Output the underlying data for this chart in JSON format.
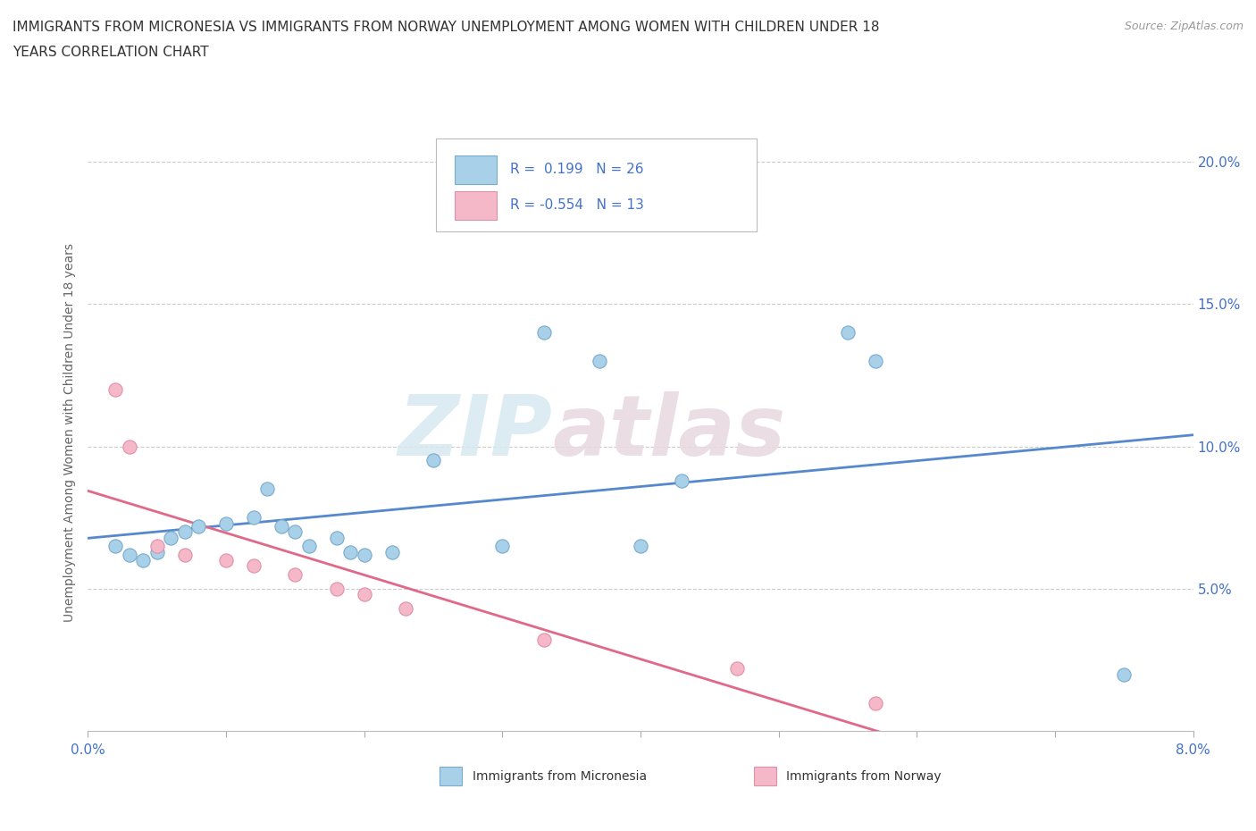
{
  "title_line1": "IMMIGRANTS FROM MICRONESIA VS IMMIGRANTS FROM NORWAY UNEMPLOYMENT AMONG WOMEN WITH CHILDREN UNDER 18",
  "title_line2": "YEARS CORRELATION CHART",
  "source": "Source: ZipAtlas.com",
  "ylabel": "Unemployment Among Women with Children Under 18 years",
  "xlim": [
    0.0,
    0.08
  ],
  "ylim": [
    0.0,
    0.21
  ],
  "x_ticks": [
    0.0,
    0.01,
    0.02,
    0.03,
    0.04,
    0.05,
    0.06,
    0.07,
    0.08
  ],
  "x_tick_labels": [
    "0.0%",
    "",
    "",
    "",
    "",
    "",
    "",
    "",
    "8.0%"
  ],
  "y_ticks": [
    0.0,
    0.05,
    0.1,
    0.15,
    0.2
  ],
  "y_tick_labels": [
    "",
    "5.0%",
    "10.0%",
    "15.0%",
    "20.0%"
  ],
  "micronesia_x": [
    0.002,
    0.003,
    0.004,
    0.005,
    0.006,
    0.007,
    0.008,
    0.01,
    0.012,
    0.013,
    0.014,
    0.015,
    0.016,
    0.018,
    0.019,
    0.02,
    0.022,
    0.025,
    0.03,
    0.033,
    0.037,
    0.04,
    0.043,
    0.055,
    0.057,
    0.075
  ],
  "micronesia_y": [
    0.065,
    0.062,
    0.06,
    0.063,
    0.068,
    0.07,
    0.072,
    0.073,
    0.075,
    0.085,
    0.072,
    0.07,
    0.065,
    0.068,
    0.063,
    0.062,
    0.063,
    0.095,
    0.065,
    0.14,
    0.13,
    0.065,
    0.088,
    0.14,
    0.13,
    0.02
  ],
  "norway_x": [
    0.002,
    0.003,
    0.005,
    0.007,
    0.01,
    0.012,
    0.015,
    0.018,
    0.02,
    0.023,
    0.033,
    0.047,
    0.057
  ],
  "norway_y": [
    0.12,
    0.1,
    0.065,
    0.062,
    0.06,
    0.058,
    0.055,
    0.05,
    0.048,
    0.043,
    0.032,
    0.022,
    0.01
  ],
  "R_micronesia": 0.199,
  "N_micronesia": 26,
  "R_norway": -0.554,
  "N_norway": 13,
  "color_micronesia": "#A8D0E8",
  "color_norway": "#F4B8C8",
  "edge_color_micronesia": "#7AAACC",
  "edge_color_norway": "#E090A8",
  "line_color_micronesia": "#5588CC",
  "line_color_norway": "#E06888",
  "background_color": "#FFFFFF",
  "watermark_zip": "ZIP",
  "watermark_atlas": "atlas",
  "title_fontsize": 11,
  "axis_label_fontsize": 10,
  "tick_fontsize": 11,
  "legend_fontsize": 11,
  "source_fontsize": 9
}
